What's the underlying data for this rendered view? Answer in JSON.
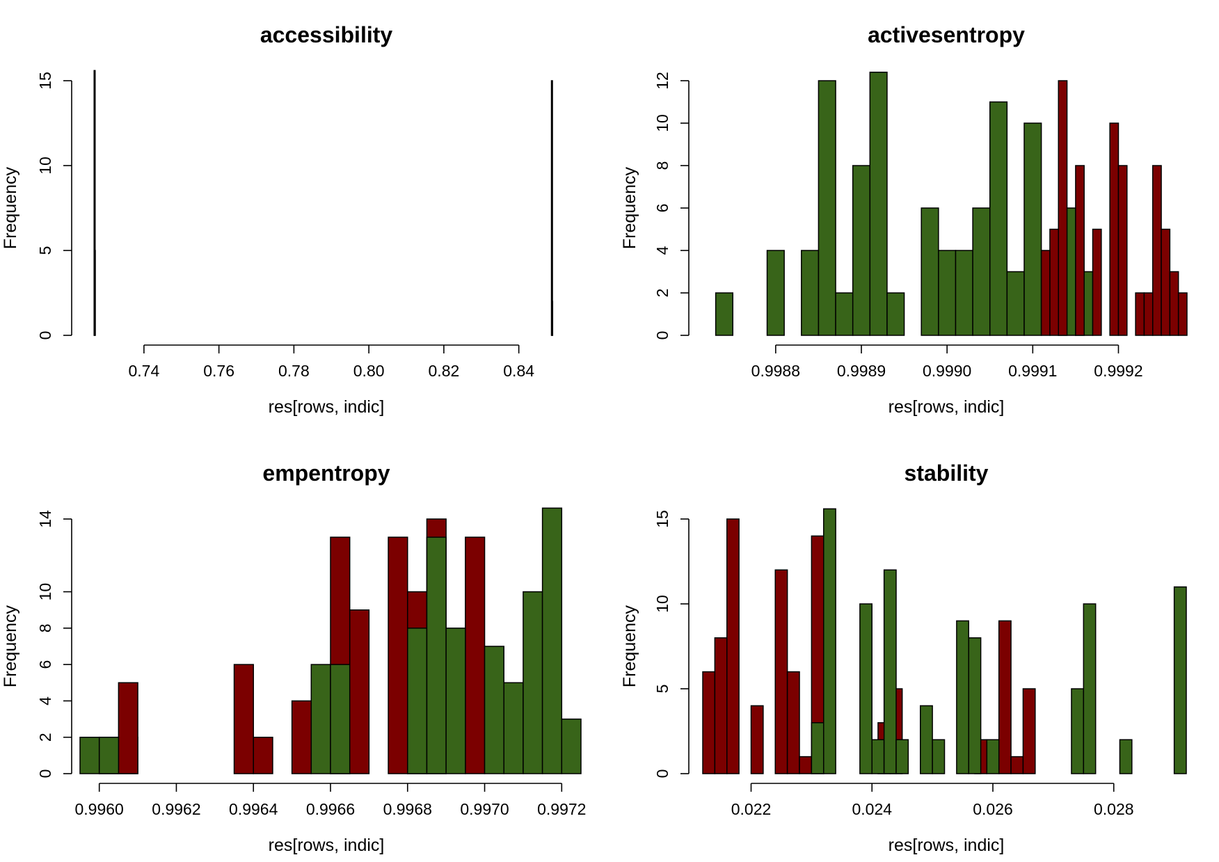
{
  "colors": {
    "green": "#386419",
    "red": "#7b0000",
    "axis": "#000000"
  },
  "chart_data": [
    {
      "type": "bar",
      "title": "accessibility",
      "xlabel": "res[rows, indic]",
      "ylabel": "Frequency",
      "xlim": [
        0.7261,
        0.8512
      ],
      "ylim": [
        0,
        15.6
      ],
      "xticks": [
        "0.74",
        "0.76",
        "0.78",
        "0.80",
        "0.82",
        "0.84"
      ],
      "yticks": [
        "0",
        "5",
        "10",
        "15"
      ],
      "series": [
        {
          "color": "green",
          "bins": [
            [
              0.7267,
              0.7269,
              15.6
            ],
            [
              0.8487,
              0.8489,
              15
            ]
          ]
        },
        {
          "color": "red",
          "bins": [
            [
              0.72675,
              0.72685,
              5
            ],
            [
              0.84875,
              0.84885,
              2
            ]
          ]
        }
      ]
    },
    {
      "type": "bar",
      "title": "activesentropy",
      "xlabel": "res[rows, indic]",
      "ylabel": "Frequency",
      "xlim": [
        0.99871,
        0.99928
      ],
      "ylim": [
        0,
        12.4
      ],
      "xticks": [
        "0.9988",
        "0.9989",
        "0.9990",
        "0.9991",
        "0.9992"
      ],
      "yticks": [
        "0",
        "2",
        "4",
        "6",
        "8",
        "10",
        "12"
      ],
      "series": [
        {
          "color": "green",
          "bins": [
            [
              0.99873,
              0.99875,
              2
            ],
            [
              0.99879,
              0.99881,
              4
            ],
            [
              0.99883,
              0.99885,
              4
            ],
            [
              0.99885,
              0.99887,
              12
            ],
            [
              0.99887,
              0.99889,
              2
            ],
            [
              0.99889,
              0.99891,
              8
            ],
            [
              0.99891,
              0.99893,
              12.4
            ],
            [
              0.99893,
              0.99895,
              2
            ],
            [
              0.99897,
              0.99899,
              6
            ],
            [
              0.99899,
              0.99901,
              4
            ],
            [
              0.99901,
              0.99903,
              4
            ],
            [
              0.99903,
              0.99905,
              6
            ],
            [
              0.99905,
              0.99907,
              11
            ],
            [
              0.99907,
              0.99909,
              3
            ],
            [
              0.99909,
              0.99911,
              10
            ],
            [
              0.99913,
              0.99915,
              6
            ],
            [
              0.99915,
              0.99917,
              3
            ]
          ]
        },
        {
          "color": "red",
          "bins": [
            [
              0.99911,
              0.99912,
              4
            ],
            [
              0.99912,
              0.99913,
              5
            ],
            [
              0.99913,
              0.99914,
              12
            ],
            [
              0.99915,
              0.99916,
              8
            ],
            [
              0.99917,
              0.99918,
              5
            ],
            [
              0.99919,
              0.9992,
              10
            ],
            [
              0.9992,
              0.99921,
              8
            ],
            [
              0.99922,
              0.99923,
              2
            ],
            [
              0.99923,
              0.99924,
              2
            ],
            [
              0.99924,
              0.99925,
              8
            ],
            [
              0.99925,
              0.99926,
              5
            ],
            [
              0.99926,
              0.99927,
              3
            ],
            [
              0.99927,
              0.99928,
              2
            ]
          ]
        }
      ]
    },
    {
      "type": "bar",
      "title": "empentropy",
      "xlabel": "res[rows, indic]",
      "ylabel": "Frequency",
      "xlim": [
        0.99595,
        0.99725
      ],
      "ylim": [
        0,
        14.6
      ],
      "xticks": [
        "0.9960",
        "0.9962",
        "0.9964",
        "0.9966",
        "0.9968",
        "0.9970",
        "0.9972"
      ],
      "yticks": [
        "0",
        "2",
        "4",
        "6",
        "8",
        "10",
        "14"
      ],
      "series": [
        {
          "color": "red",
          "bins": [
            [
              0.996,
              0.9961,
              2
            ],
            [
              0.99605,
              0.9961,
              5
            ],
            [
              0.99635,
              0.9964,
              6
            ],
            [
              0.9964,
              0.99645,
              2
            ],
            [
              0.9965,
              0.99655,
              4
            ],
            [
              0.9966,
              0.99665,
              13
            ],
            [
              0.99665,
              0.9967,
              9
            ],
            [
              0.99675,
              0.9968,
              13
            ],
            [
              0.9968,
              0.99685,
              10
            ],
            [
              0.99685,
              0.9969,
              14
            ],
            [
              0.99695,
              0.997,
              13
            ]
          ]
        },
        {
          "color": "green",
          "bins": [
            [
              0.99595,
              0.996,
              2
            ],
            [
              0.996,
              0.99605,
              2
            ],
            [
              0.99655,
              0.9966,
              6
            ],
            [
              0.9966,
              0.99665,
              6
            ],
            [
              0.9968,
              0.99685,
              8
            ],
            [
              0.99685,
              0.9969,
              13
            ],
            [
              0.9969,
              0.99695,
              8
            ],
            [
              0.997,
              0.99705,
              7
            ],
            [
              0.99705,
              0.9971,
              5
            ],
            [
              0.9971,
              0.99715,
              10
            ],
            [
              0.99715,
              0.9972,
              14.6
            ],
            [
              0.9972,
              0.99725,
              3
            ]
          ]
        }
      ]
    },
    {
      "type": "bar",
      "title": "stability",
      "xlabel": "res[rows, indic]",
      "ylabel": "Frequency",
      "xlim": [
        0.0212,
        0.0292
      ],
      "ylim": [
        0,
        15.6
      ],
      "xticks": [
        "0.022",
        "0.024",
        "0.026",
        "0.028"
      ],
      "yticks": [
        "0",
        "5",
        "10",
        "15"
      ],
      "series": [
        {
          "color": "red",
          "bins": [
            [
              0.0212,
              0.0214,
              6
            ],
            [
              0.0214,
              0.0216,
              8
            ],
            [
              0.0216,
              0.0218,
              15
            ],
            [
              0.022,
              0.0222,
              4
            ],
            [
              0.0224,
              0.0226,
              12
            ],
            [
              0.0226,
              0.0228,
              6
            ],
            [
              0.0228,
              0.023,
              1
            ],
            [
              0.023,
              0.0232,
              14
            ],
            [
              0.0241,
              0.0243,
              3
            ],
            [
              0.0243,
              0.0245,
              5
            ],
            [
              0.0257,
              0.0259,
              2
            ],
            [
              0.0261,
              0.0263,
              9
            ],
            [
              0.0263,
              0.0265,
              1
            ],
            [
              0.0265,
              0.0267,
              5
            ]
          ]
        },
        {
          "color": "green",
          "bins": [
            [
              0.023,
              0.0232,
              3
            ],
            [
              0.0232,
              0.0234,
              15.6
            ],
            [
              0.0238,
              0.024,
              10
            ],
            [
              0.024,
              0.0242,
              2
            ],
            [
              0.0242,
              0.0244,
              12
            ],
            [
              0.0244,
              0.0246,
              2
            ],
            [
              0.0248,
              0.025,
              4
            ],
            [
              0.025,
              0.0252,
              2
            ],
            [
              0.0254,
              0.0256,
              9
            ],
            [
              0.0256,
              0.0258,
              8
            ],
            [
              0.0259,
              0.0261,
              2
            ],
            [
              0.0273,
              0.0275,
              5
            ],
            [
              0.0275,
              0.0277,
              10
            ],
            [
              0.0281,
              0.0283,
              2
            ],
            [
              0.029,
              0.0292,
              11
            ]
          ]
        }
      ]
    }
  ]
}
